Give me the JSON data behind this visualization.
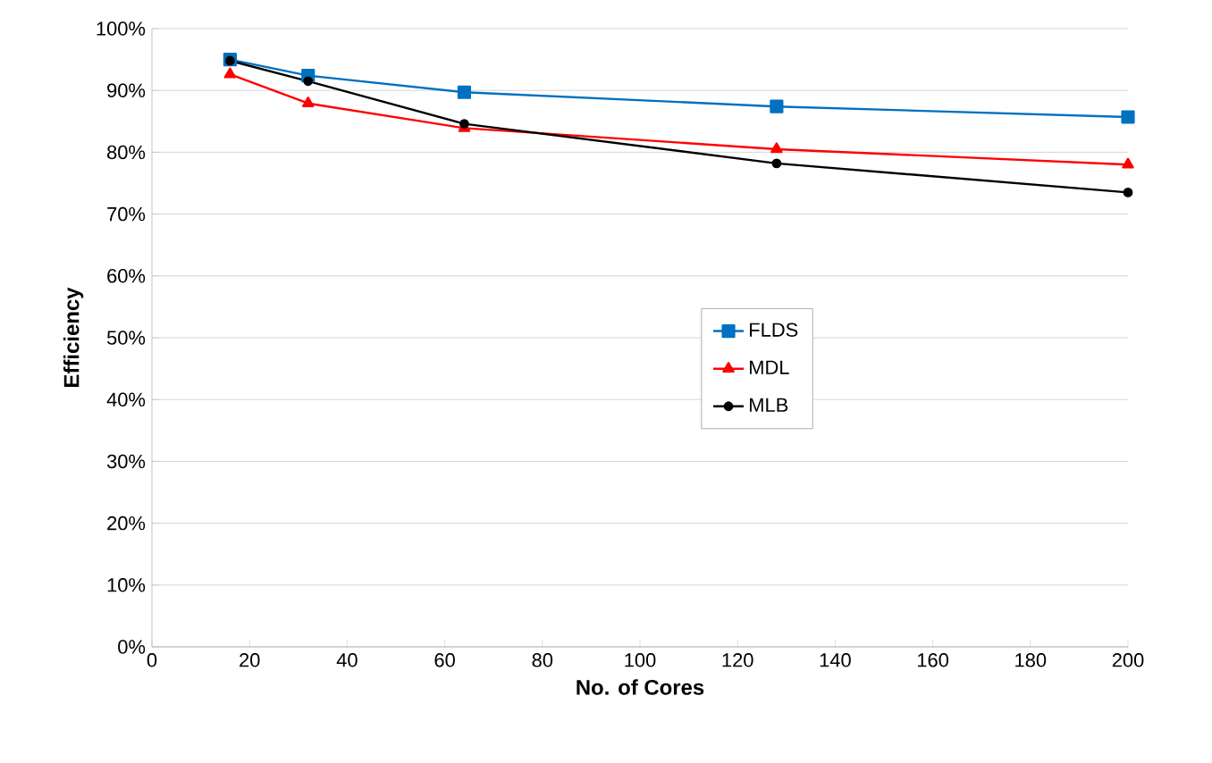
{
  "chart_data": {
    "type": "line",
    "xlabel": "No. of Cores",
    "ylabel": "Efficiency",
    "xlim": [
      0,
      200
    ],
    "xticks": [
      0,
      20,
      40,
      60,
      80,
      100,
      120,
      140,
      160,
      180,
      200
    ],
    "ylim": [
      0,
      100
    ],
    "yticks": [
      {
        "value": 0,
        "label": "0%"
      },
      {
        "value": 10,
        "label": "10%"
      },
      {
        "value": 20,
        "label": "20%"
      },
      {
        "value": 30,
        "label": "30%"
      },
      {
        "value": 40,
        "label": "40%"
      },
      {
        "value": 50,
        "label": "50%"
      },
      {
        "value": 60,
        "label": "60%"
      },
      {
        "value": 70,
        "label": "70%"
      },
      {
        "value": 80,
        "label": "80%"
      },
      {
        "value": 90,
        "label": "90%"
      },
      {
        "value": 100,
        "label": "100%"
      }
    ],
    "grid": "y",
    "legend": "center",
    "series": [
      {
        "name": "FLDS",
        "color": "#0070c0",
        "marker": "square",
        "x": [
          16,
          32,
          64,
          128,
          200
        ],
        "values": [
          95,
          92.4,
          89.7,
          87.4,
          85.7
        ]
      },
      {
        "name": "MDL",
        "color": "#ff0000",
        "marker": "triangle",
        "x": [
          16,
          32,
          64,
          128,
          200
        ],
        "values": [
          92.6,
          87.9,
          83.9,
          80.5,
          78.0
        ]
      },
      {
        "name": "MLB",
        "color": "#000000",
        "marker": "circle",
        "x": [
          16,
          32,
          64,
          128,
          200
        ],
        "values": [
          94.8,
          91.5,
          84.6,
          78.2,
          73.5
        ]
      }
    ]
  }
}
